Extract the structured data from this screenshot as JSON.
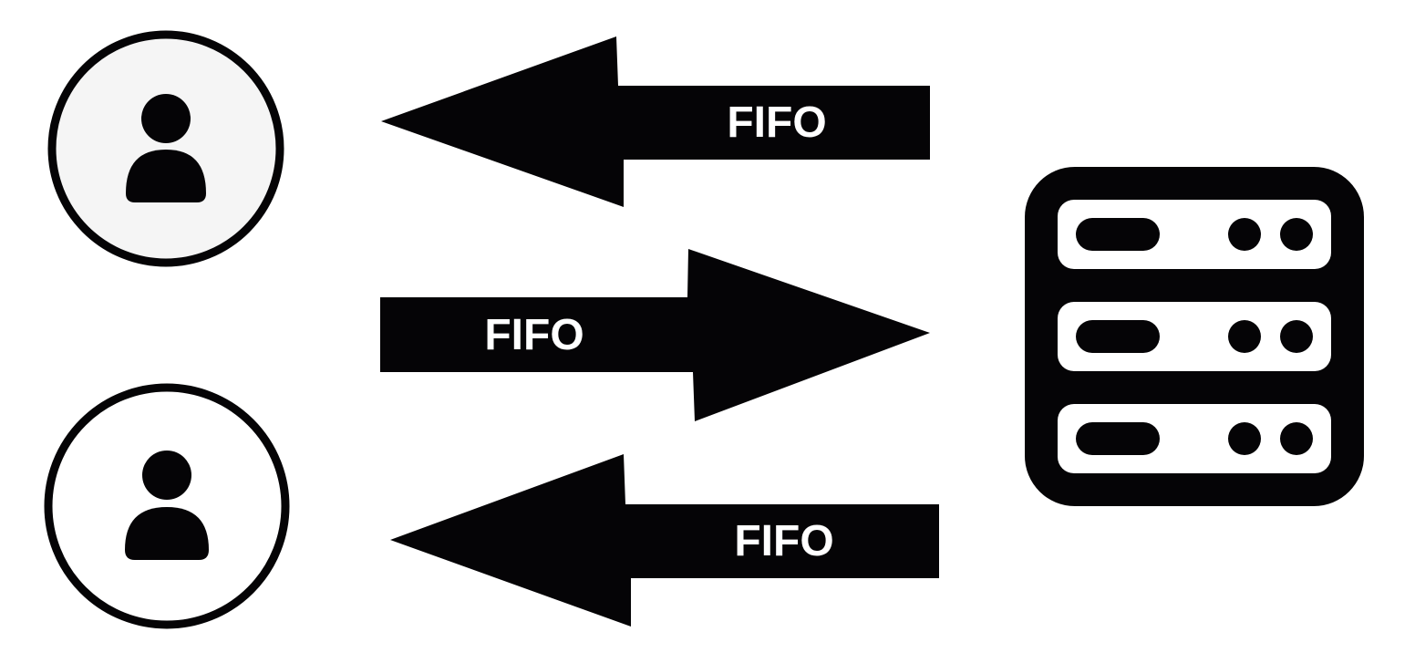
{
  "diagram": {
    "arrows": [
      {
        "label": "FIFO",
        "direction": "left",
        "from": "server",
        "to": "client-top"
      },
      {
        "label": "FIFO",
        "direction": "right",
        "from": "client-top",
        "to": "server"
      },
      {
        "label": "FIFO",
        "direction": "left",
        "from": "server",
        "to": "client-bottom"
      }
    ],
    "nodes": {
      "client_top": {
        "icon": "user-icon"
      },
      "client_bottom": {
        "icon": "user-icon"
      },
      "server": {
        "icon": "server-rack-icon",
        "units": 3
      }
    }
  },
  "colors": {
    "background": "#ffffff",
    "ink": "#050406",
    "client_top_fill": "#f5f5f5",
    "client_bottom_fill": "#ffffff",
    "label": "#ffffff"
  }
}
